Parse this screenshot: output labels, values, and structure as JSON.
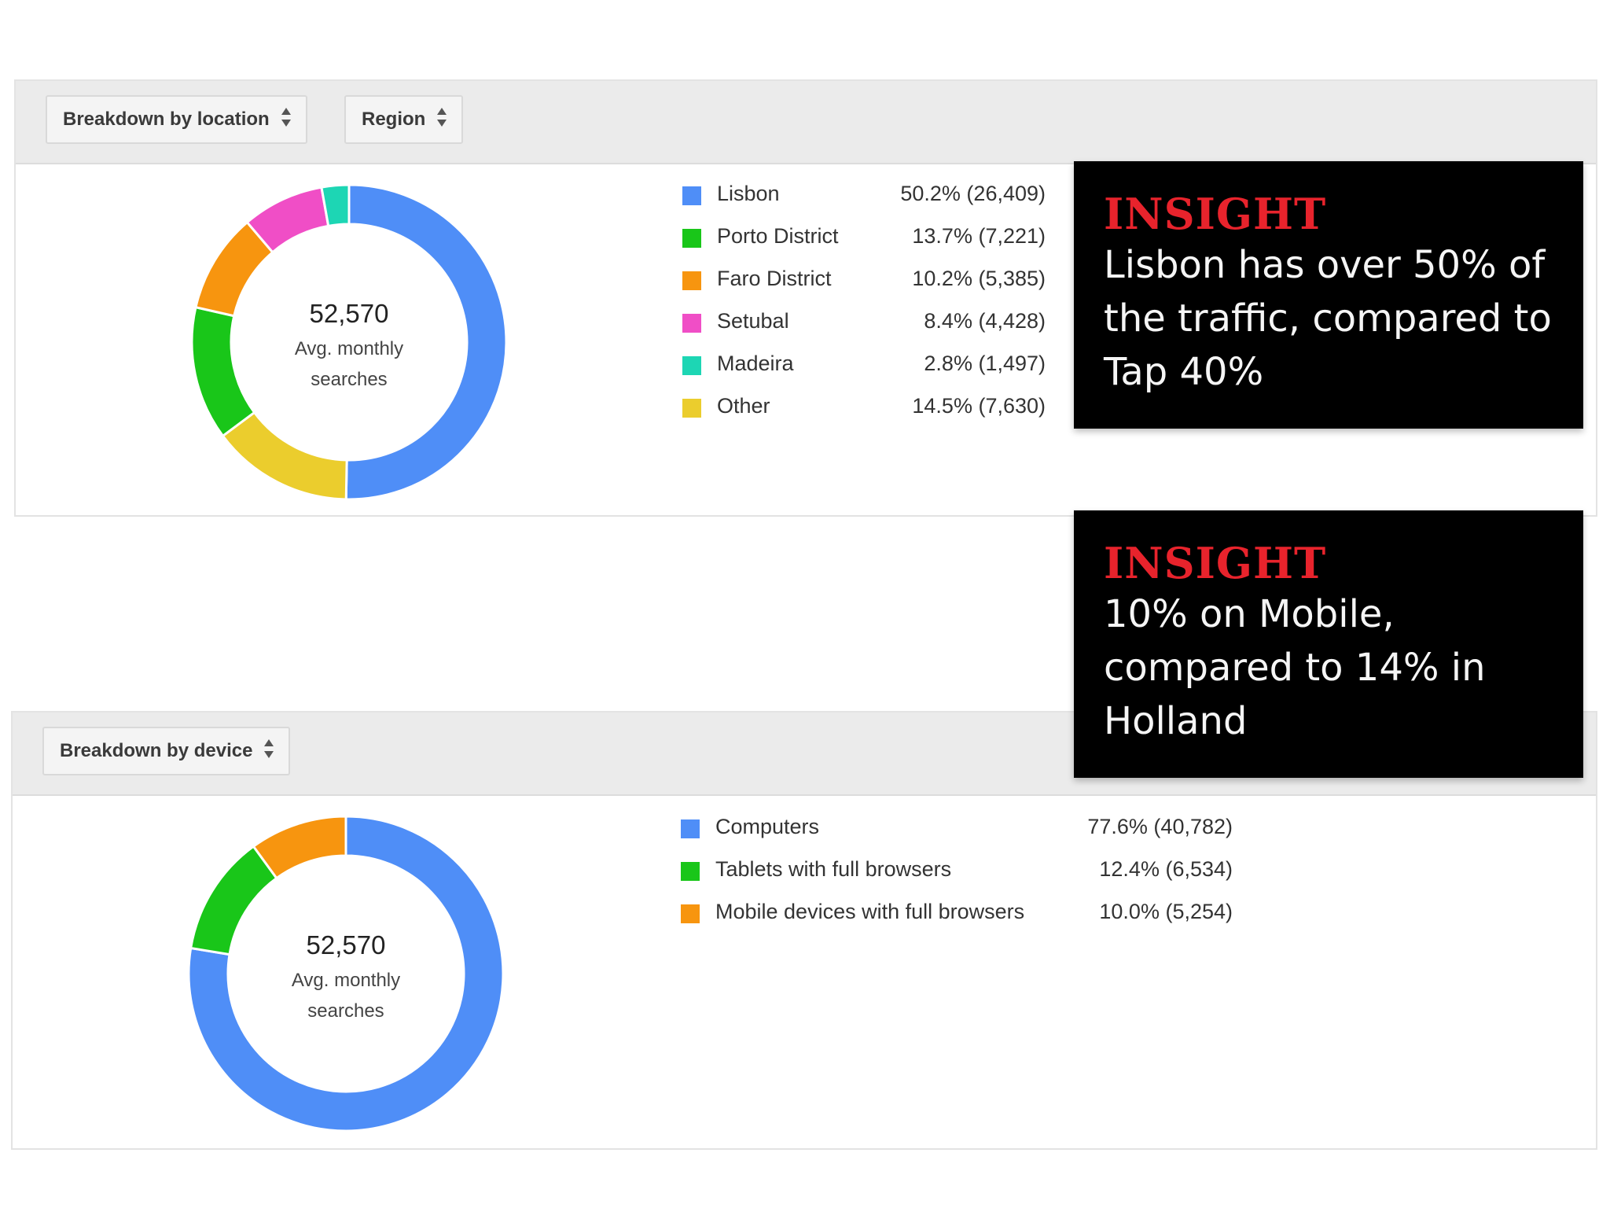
{
  "location_panel": {
    "select_breakdown": "Breakdown by location",
    "select_region": "Region"
  },
  "device_panel": {
    "select_breakdown": "Breakdown by device"
  },
  "insights": [
    {
      "heading": "INSIGHT",
      "text": "Lisbon has over 50% of the traffic, compared to Tap 40%"
    },
    {
      "heading": "INSIGHT",
      "text": "10% on Mobile, compared to 14% in Holland"
    }
  ],
  "chart_data": [
    {
      "type": "pie",
      "center_value": "52,570",
      "center_label_line1": "Avg. monthly",
      "center_label_line2": "searches",
      "categories": [
        "Lisbon",
        "Porto District",
        "Faro District",
        "Setubal",
        "Madeira",
        "Other"
      ],
      "values": [
        50.2,
        13.7,
        10.2,
        8.4,
        2.8,
        14.5
      ],
      "counts": [
        26409,
        7221,
        5385,
        4428,
        1497,
        7630
      ],
      "value_labels": [
        "50.2% (26,409)",
        "13.7% (7,221)",
        "10.2% (5,385)",
        "8.4% (4,428)",
        "2.8% (1,497)",
        "14.5% (7,630)"
      ],
      "colors": [
        "#4f8ef7",
        "#19c619",
        "#f7950f",
        "#f04ec6",
        "#1dd6b4",
        "#ebcd2d"
      ],
      "slice_order": [
        "Lisbon",
        "Other",
        "Porto District",
        "Faro District",
        "Setubal",
        "Madeira"
      ],
      "legend_position": "right"
    },
    {
      "type": "pie",
      "center_value": "52,570",
      "center_label_line1": "Avg. monthly",
      "center_label_line2": "searches",
      "categories": [
        "Computers",
        "Tablets with full browsers",
        "Mobile devices with full browsers"
      ],
      "values": [
        77.6,
        12.4,
        10.0
      ],
      "counts": [
        40782,
        6534,
        5254
      ],
      "value_labels": [
        "77.6% (40,782)",
        "12.4% (6,534)",
        "10.0% (5,254)"
      ],
      "colors": [
        "#4f8ef7",
        "#19c619",
        "#f7950f"
      ],
      "slice_order": [
        "Computers",
        "Tablets with full browsers",
        "Mobile devices with full browsers"
      ],
      "legend_position": "right"
    }
  ]
}
